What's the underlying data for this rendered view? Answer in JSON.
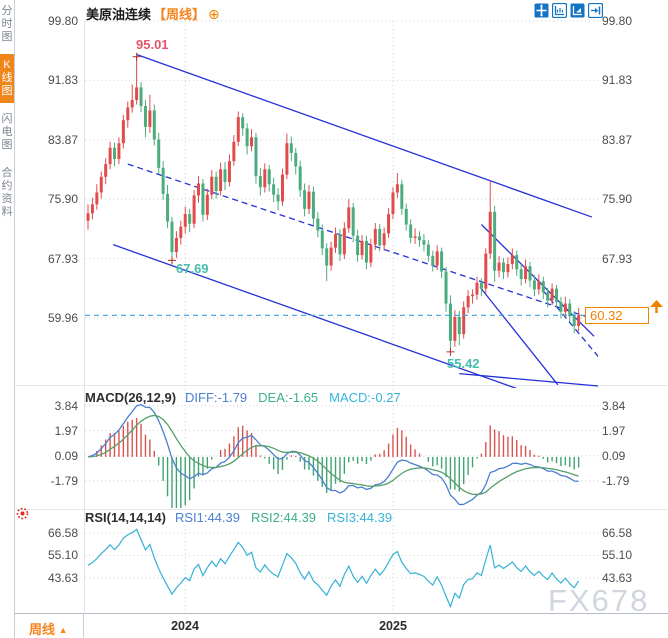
{
  "header": {
    "title": "美原油连续",
    "period_tag": "【周线】",
    "add_indicator_icon": "⊕"
  },
  "sidebar": {
    "items": [
      {
        "label": "分时图",
        "selected": false
      },
      {
        "label": "K线图",
        "selected": true
      },
      {
        "label": "闪电图",
        "selected": false
      },
      {
        "label": "合约资料",
        "selected": false
      }
    ]
  },
  "toolbar": {
    "icons": [
      "crosshair",
      "axis-range",
      "axis-zoom-play",
      "jump-to-latest"
    ]
  },
  "main_chart": {
    "y_axis_labels": [
      "99.80",
      "91.83",
      "83.87",
      "75.90",
      "67.93",
      "59.96"
    ]
  },
  "macd_panel": {
    "title": "MACD(26,12,9)",
    "diff_label": "DIFF:-1.79",
    "dea_label": "DEA:-1.65",
    "macd_label": "MACD:-0.27",
    "y_axis_labels": [
      "3.84",
      "1.97",
      "0.09",
      "-1.79"
    ]
  },
  "rsi_panel": {
    "title": "RSI(14,14,14)",
    "rsi1_label": "RSI1:44.39",
    "rsi2_label": "RSI2:44.39",
    "rsi3_label": "RSI3:44.39",
    "y_axis_labels": [
      "66.58",
      "55.10",
      "43.63"
    ]
  },
  "bottom_bar": {
    "period_label": "周线",
    "period_arrow": "▲"
  },
  "price_tag": {
    "value": "60.32"
  },
  "watermark": "FX678",
  "colors": {
    "up_candle": "#e14b4b",
    "down_candle": "#4bad7e",
    "trend_blue": "#2531d8",
    "price_line": "#3b9fe0",
    "accent_orange": "#f08200",
    "diff_line": "#4c7fd0",
    "dea_line": "#55a06b",
    "rsi_line": "#35b2d5",
    "grid": "#d0d0d0",
    "hist_pos": "#d9544f",
    "hist_neg": "#3fa372",
    "watermark": "#cfd6de"
  },
  "chart_data": {
    "type": "candlestick",
    "title": "美原油连续 周线 (WTI crude continuous, weekly)",
    "price_axis_ticks": [
      99.8,
      91.83,
      83.87,
      75.9,
      67.93,
      59.96
    ],
    "current_price": 60.32,
    "year_ticks": [
      {
        "label": "2024",
        "index": 22
      },
      {
        "label": "2025",
        "index": 69
      }
    ],
    "markers": [
      {
        "index": 11,
        "price": 95.01,
        "label": "95.01",
        "kind": "high"
      },
      {
        "index": 19,
        "price": 67.69,
        "label": "67.69",
        "kind": "low"
      },
      {
        "index": 82,
        "price": 55.42,
        "label": "55.42",
        "kind": "low"
      }
    ],
    "trendlines": [
      {
        "from": [
          11,
          95.3
        ],
        "to": [
          114,
          73.5
        ],
        "dashed": false
      },
      {
        "from": [
          9,
          80.6
        ],
        "to": [
          115,
          59.7
        ],
        "dashed": true
      },
      {
        "from": [
          5.7,
          69.8
        ],
        "to": [
          97,
          50.5
        ],
        "dashed": false
      },
      {
        "from": [
          89,
          72.5
        ],
        "to": [
          114.5,
          57.5
        ],
        "dashed": false
      },
      {
        "from": [
          88.7,
          64.1
        ],
        "to": [
          106.3,
          51.0
        ],
        "dashed": false
      },
      {
        "from": [
          103,
          63.6
        ],
        "to": [
          116,
          54.4
        ],
        "dashed": true
      },
      {
        "from": [
          84,
          52.5
        ],
        "to": [
          118,
          50.7
        ],
        "dashed": false
      }
    ],
    "macd": {
      "fast": 12,
      "slow": 26,
      "signal": 9,
      "diff": -1.79,
      "dea": -1.65,
      "macd": -0.27,
      "axis_ticks": [
        3.84,
        1.97,
        0.09,
        -1.79
      ]
    },
    "rsi": {
      "periods": [
        14,
        14,
        14
      ],
      "rsi1": 44.39,
      "rsi2": 44.39,
      "rsi3": 44.39,
      "axis_ticks": [
        66.58,
        55.1,
        43.63
      ]
    },
    "candles": [
      [
        73.0,
        75.2,
        71.8,
        74.0
      ],
      [
        74.0,
        76.1,
        73.2,
        75.2
      ],
      [
        75.2,
        77.9,
        74.5,
        76.8
      ],
      [
        76.8,
        79.6,
        76.0,
        78.9
      ],
      [
        78.9,
        81.4,
        77.9,
        80.6
      ],
      [
        80.6,
        83.6,
        79.9,
        82.8
      ],
      [
        82.8,
        83.5,
        80.3,
        81.3
      ],
      [
        81.3,
        84.2,
        80.6,
        83.4
      ],
      [
        83.4,
        87.2,
        82.7,
        86.5
      ],
      [
        86.5,
        89.0,
        85.5,
        88.2
      ],
      [
        88.2,
        91.3,
        87.5,
        89.2
      ],
      [
        89.2,
        95.01,
        88.6,
        90.9
      ],
      [
        90.9,
        91.6,
        87.6,
        88.4
      ],
      [
        88.4,
        89.2,
        84.2,
        85.6
      ],
      [
        85.6,
        89.9,
        84.8,
        87.8
      ],
      [
        87.8,
        88.6,
        83.1,
        83.9
      ],
      [
        83.9,
        84.8,
        79.3,
        80.1
      ],
      [
        80.1,
        81.0,
        75.8,
        76.6
      ],
      [
        76.6,
        77.8,
        72.0,
        72.9
      ],
      [
        72.9,
        73.5,
        67.69,
        68.8
      ],
      [
        68.8,
        71.6,
        68.0,
        70.7
      ],
      [
        70.7,
        73.0,
        69.8,
        72.2
      ],
      [
        72.2,
        74.9,
        71.3,
        73.9
      ],
      [
        73.9,
        74.6,
        71.5,
        72.6
      ],
      [
        72.6,
        77.1,
        72.0,
        76.4
      ],
      [
        76.4,
        79.0,
        75.4,
        78.0
      ],
      [
        78.0,
        78.6,
        72.9,
        73.8
      ],
      [
        73.8,
        77.3,
        73.1,
        76.5
      ],
      [
        76.5,
        79.8,
        75.9,
        78.9
      ],
      [
        78.9,
        79.6,
        76.0,
        77.0
      ],
      [
        77.0,
        80.8,
        76.4,
        79.9
      ],
      [
        79.9,
        80.9,
        77.1,
        78.2
      ],
      [
        78.2,
        81.9,
        77.6,
        81.0
      ],
      [
        81.0,
        84.5,
        80.4,
        83.6
      ],
      [
        83.6,
        87.67,
        83.0,
        86.9
      ],
      [
        86.9,
        87.4,
        84.4,
        85.4
      ],
      [
        85.4,
        86.1,
        81.9,
        83.0
      ],
      [
        83.0,
        85.3,
        82.3,
        84.2
      ],
      [
        84.2,
        84.8,
        78.0,
        79.0
      ],
      [
        79.0,
        80.1,
        76.4,
        77.5
      ],
      [
        77.5,
        80.7,
        76.8,
        79.9
      ],
      [
        79.9,
        80.5,
        76.9,
        77.9
      ],
      [
        77.9,
        78.8,
        75.5,
        76.5
      ],
      [
        76.5,
        77.4,
        74.4,
        75.6
      ],
      [
        75.6,
        80.0,
        75.0,
        79.2
      ],
      [
        79.2,
        84.7,
        78.6,
        83.4
      ],
      [
        83.4,
        84.3,
        81.0,
        82.1
      ],
      [
        82.1,
        82.8,
        79.2,
        80.3
      ],
      [
        80.3,
        81.1,
        76.2,
        77.1
      ],
      [
        77.1,
        78.0,
        73.6,
        74.6
      ],
      [
        74.6,
        77.8,
        73.9,
        76.9
      ],
      [
        76.9,
        77.6,
        72.4,
        73.3
      ],
      [
        73.3,
        74.2,
        70.8,
        71.7
      ],
      [
        71.7,
        72.5,
        68.4,
        69.3
      ],
      [
        69.3,
        70.0,
        64.9,
        67.0
      ],
      [
        67.0,
        70.2,
        66.3,
        69.4
      ],
      [
        69.4,
        72.1,
        68.7,
        71.2
      ],
      [
        71.2,
        71.9,
        67.6,
        68.5
      ],
      [
        68.5,
        72.8,
        67.9,
        72.0
      ],
      [
        72.0,
        75.9,
        71.4,
        74.8
      ],
      [
        74.8,
        75.4,
        70.1,
        71.0
      ],
      [
        71.0,
        71.8,
        67.5,
        68.4
      ],
      [
        68.4,
        71.1,
        67.8,
        70.3
      ],
      [
        70.3,
        71.0,
        66.5,
        67.4
      ],
      [
        67.4,
        70.6,
        66.8,
        69.8
      ],
      [
        69.8,
        72.7,
        69.1,
        71.9
      ],
      [
        71.9,
        72.6,
        68.9,
        69.7
      ],
      [
        69.7,
        72.1,
        69.0,
        71.3
      ],
      [
        71.3,
        74.7,
        70.7,
        73.9
      ],
      [
        73.9,
        77.5,
        73.2,
        76.8
      ],
      [
        76.8,
        79.4,
        76.1,
        77.9
      ],
      [
        77.9,
        78.5,
        73.8,
        74.6
      ],
      [
        74.6,
        75.3,
        71.7,
        72.5
      ],
      [
        72.5,
        73.2,
        70.0,
        70.7
      ],
      [
        70.7,
        72.0,
        69.9,
        70.9
      ],
      [
        70.9,
        71.6,
        69.5,
        70.4
      ],
      [
        70.4,
        71.2,
        68.9,
        69.8
      ],
      [
        69.8,
        70.4,
        67.5,
        68.3
      ],
      [
        68.3,
        69.0,
        66.2,
        67.0
      ],
      [
        67.0,
        69.7,
        66.4,
        68.9
      ],
      [
        68.9,
        69.4,
        65.3,
        66.2
      ],
      [
        66.2,
        66.8,
        60.8,
        61.9
      ],
      [
        61.9,
        63.0,
        55.42,
        56.9
      ],
      [
        56.9,
        61.0,
        56.1,
        60.1
      ],
      [
        60.1,
        60.9,
        56.3,
        57.8
      ],
      [
        57.8,
        62.2,
        57.2,
        61.4
      ],
      [
        61.4,
        63.7,
        60.6,
        62.9
      ],
      [
        62.9,
        63.8,
        61.9,
        63.1
      ],
      [
        63.1,
        65.5,
        62.4,
        64.7
      ],
      [
        64.7,
        65.3,
        62.9,
        63.9
      ],
      [
        63.9,
        69.3,
        63.3,
        68.6
      ],
      [
        68.6,
        78.4,
        67.9,
        74.2
      ],
      [
        74.2,
        75.0,
        64.8,
        66.3
      ],
      [
        66.3,
        68.3,
        65.4,
        67.4
      ],
      [
        67.4,
        68.0,
        65.2,
        66.1
      ],
      [
        66.1,
        68.1,
        65.4,
        67.2
      ],
      [
        67.2,
        69.3,
        66.5,
        68.4
      ],
      [
        68.4,
        69.0,
        65.6,
        66.5
      ],
      [
        66.5,
        67.2,
        64.3,
        65.2
      ],
      [
        65.2,
        67.8,
        64.6,
        66.9
      ],
      [
        66.9,
        67.5,
        64.1,
        65.0
      ],
      [
        65.0,
        65.7,
        62.9,
        63.8
      ],
      [
        63.8,
        65.8,
        63.1,
        64.9
      ],
      [
        64.9,
        65.5,
        62.5,
        63.4
      ],
      [
        63.4,
        64.0,
        61.4,
        62.3
      ],
      [
        62.3,
        64.6,
        61.7,
        63.9
      ],
      [
        63.9,
        64.4,
        61.3,
        62.1
      ],
      [
        62.1,
        62.8,
        59.9,
        60.8
      ],
      [
        60.8,
        62.8,
        60.1,
        61.9
      ],
      [
        61.9,
        62.5,
        59.4,
        60.2
      ],
      [
        60.2,
        60.9,
        57.9,
        58.9
      ],
      [
        58.9,
        61.3,
        58.2,
        60.32
      ]
    ]
  }
}
